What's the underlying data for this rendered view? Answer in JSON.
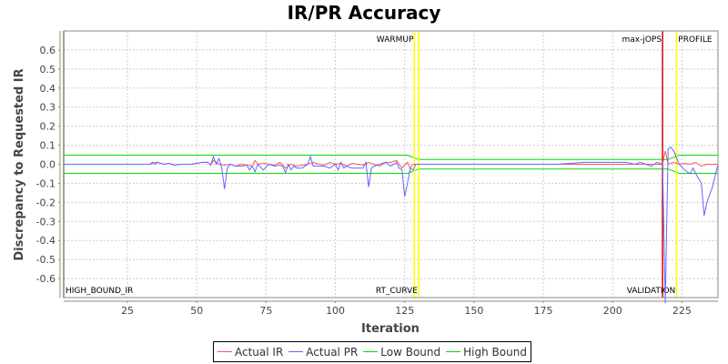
{
  "chart_data": {
    "type": "line",
    "title": "IR/PR Accuracy",
    "xlabel": "Iteration",
    "ylabel": "Discrepancy to Requested IR",
    "xlim": [
      2,
      238
    ],
    "ylim": [
      -0.7,
      0.7
    ],
    "xticks": [
      25,
      50,
      75,
      100,
      125,
      150,
      175,
      200,
      225
    ],
    "yticks": [
      -0.6,
      -0.5,
      -0.4,
      -0.3,
      -0.2,
      -0.1,
      0.0,
      0.1,
      0.2,
      0.3,
      0.4,
      0.5,
      0.6
    ],
    "grid": true,
    "legend_position": "bottom",
    "series": [
      {
        "name": "Actual IR",
        "color": "#ff5555",
        "x": [
          2,
          33,
          35,
          36,
          38,
          40,
          42,
          44,
          46,
          48,
          50,
          52,
          54,
          55,
          56,
          58,
          60,
          62,
          64,
          66,
          68,
          70,
          71,
          72,
          74,
          76,
          78,
          80,
          82,
          84,
          86,
          88,
          90,
          92,
          94,
          96,
          98,
          100,
          102,
          104,
          106,
          108,
          110,
          112,
          114,
          116,
          118,
          120,
          122,
          124,
          126,
          127,
          128,
          130,
          140,
          160,
          180,
          200,
          210,
          216,
          218,
          219,
          220,
          222,
          224,
          226,
          228,
          230,
          232,
          234,
          236,
          238
        ],
        "y": [
          0,
          0,
          0.01,
          0.01,
          0,
          0.005,
          -0.005,
          0,
          0,
          0,
          0.005,
          0.01,
          0.01,
          -0.005,
          0.02,
          0,
          -0.005,
          0,
          -0.01,
          0,
          -0.005,
          -0.01,
          0.02,
          0,
          0.005,
          0,
          -0.005,
          0.01,
          -0.02,
          0,
          -0.01,
          -0.005,
          0,
          0.01,
          0,
          -0.005,
          0.01,
          0,
          0.005,
          -0.01,
          0.005,
          0,
          -0.005,
          0.01,
          0,
          -0.01,
          0.01,
          0.01,
          0.02,
          -0.02,
          0.01,
          -0.02,
          0,
          0,
          0,
          0,
          0,
          0,
          0,
          0,
          0,
          0.07,
          0,
          0.01,
          0,
          0.005,
          0,
          0.01,
          -0.01,
          0,
          0,
          0
        ]
      },
      {
        "name": "Actual PR",
        "color": "#6666ff",
        "x": [
          2,
          33,
          34,
          35,
          36,
          38,
          40,
          42,
          44,
          46,
          48,
          50,
          52,
          54,
          55,
          56,
          57,
          58,
          59,
          60,
          61,
          62,
          64,
          66,
          68,
          69,
          70,
          71,
          72,
          74,
          76,
          78,
          80,
          81,
          82,
          83,
          84,
          85,
          86,
          88,
          90,
          91,
          92,
          94,
          96,
          98,
          100,
          101,
          102,
          103,
          104,
          106,
          108,
          110,
          111,
          112,
          113,
          114,
          116,
          118,
          120,
          122,
          123,
          124,
          125,
          126,
          127,
          128,
          129,
          130,
          140,
          160,
          180,
          190,
          200,
          205,
          208,
          210,
          212,
          214,
          216,
          218,
          219,
          220,
          221,
          222,
          224,
          226,
          228,
          229,
          230,
          232,
          233,
          234,
          236,
          238
        ],
        "y": [
          0,
          0,
          0.01,
          0,
          0.01,
          0,
          0.005,
          -0.005,
          0,
          0,
          0,
          0.005,
          0.01,
          0.01,
          -0.005,
          0.04,
          0,
          0.03,
          -0.02,
          -0.13,
          -0.02,
          0,
          -0.01,
          -0.01,
          -0.005,
          -0.03,
          -0.01,
          -0.04,
          0,
          -0.03,
          0,
          -0.01,
          -0.005,
          -0.01,
          -0.045,
          0,
          -0.03,
          -0.01,
          -0.02,
          -0.02,
          0,
          0.04,
          -0.01,
          -0.01,
          -0.01,
          -0.02,
          0,
          -0.03,
          0.01,
          -0.02,
          -0.01,
          -0.02,
          -0.02,
          -0.02,
          0.01,
          -0.12,
          -0.02,
          -0.01,
          0,
          0.01,
          -0.01,
          0.01,
          -0.02,
          -0.03,
          -0.17,
          -0.1,
          -0.02,
          -0.03,
          0,
          0,
          0,
          0,
          0,
          0.01,
          0.01,
          0.01,
          0,
          0.01,
          0,
          -0.01,
          0.01,
          0,
          -0.73,
          0.08,
          0.09,
          0.07,
          0,
          -0.03,
          -0.05,
          -0.02,
          -0.05,
          -0.1,
          -0.27,
          -0.2,
          -0.12,
          0
        ]
      },
      {
        "name": "Low Bound",
        "color": "#00dd00",
        "x": [
          2,
          126,
          130,
          220,
          224,
          238
        ],
        "y": [
          -0.048,
          -0.048,
          -0.025,
          -0.025,
          -0.048,
          -0.048
        ]
      },
      {
        "name": "High Bound",
        "color": "#00dd00",
        "x": [
          2,
          126,
          130,
          220,
          224,
          238
        ],
        "y": [
          0.048,
          0.048,
          0.025,
          0.025,
          0.048,
          0.048
        ]
      }
    ],
    "markers": [
      {
        "x": 2,
        "label": "HIGH_BOUND_IR",
        "color": "#808000",
        "label_pos": "bottom"
      },
      {
        "x": 128.5,
        "label": "WARMUP",
        "color": "#ffff00",
        "label_pos": "top"
      },
      {
        "x": 130,
        "label": "RT_CURVE",
        "color": "#ffff00",
        "label_pos": "bottom"
      },
      {
        "x": 218,
        "label": "max-jOPS",
        "color": "#dd0000",
        "label_pos": "top"
      },
      {
        "x": 223,
        "label": "VALIDATION",
        "color": "#ffff00",
        "label_pos": "bottom"
      },
      {
        "x": 223,
        "label": "PROFILE",
        "color": "#ffff00",
        "label_pos": "top"
      }
    ]
  },
  "legend": {
    "items": [
      {
        "label": "Actual IR",
        "color": "#ff5555"
      },
      {
        "label": "Actual PR",
        "color": "#6666ff"
      },
      {
        "label": "Low Bound",
        "color": "#00dd00"
      },
      {
        "label": "High Bound",
        "color": "#00dd00"
      }
    ]
  }
}
